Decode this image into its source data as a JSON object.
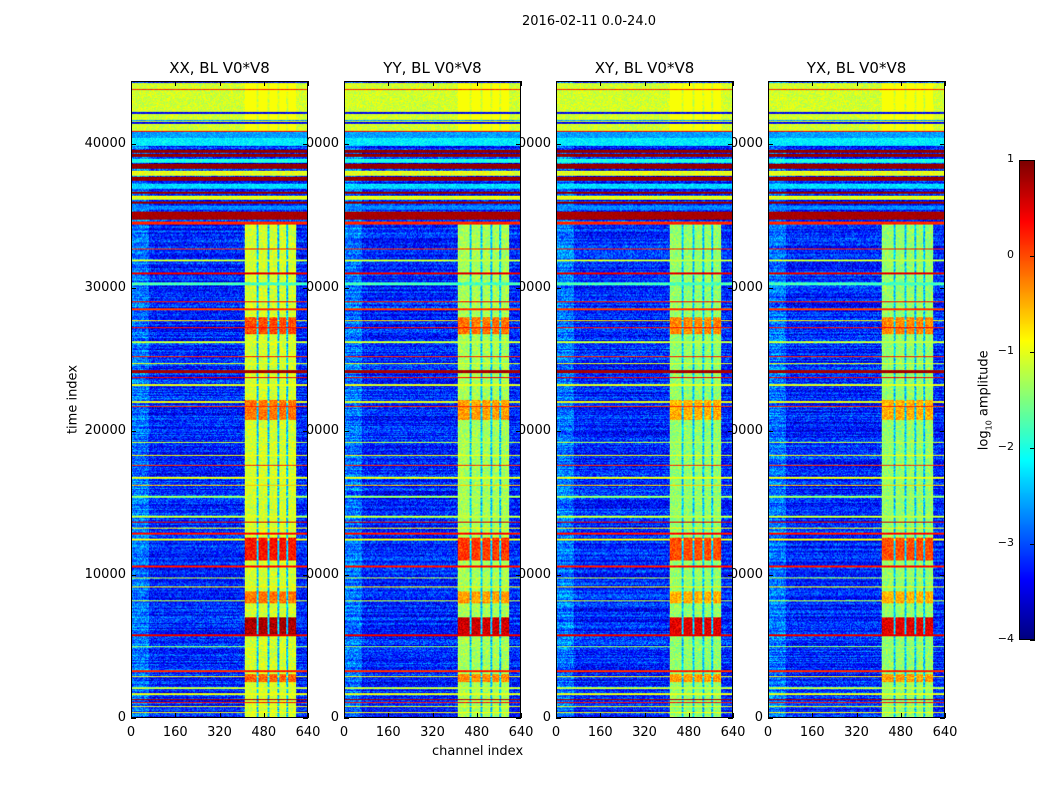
{
  "chart_data": {
    "type": "heatmap",
    "title": "2016-02-11 0.0-24.0",
    "xlabel": "channel index",
    "ylabel": "time index",
    "xlim": [
      0,
      640
    ],
    "ylim": [
      0,
      44400
    ],
    "xticks": [
      "0",
      "160",
      "320",
      "480",
      "640"
    ],
    "yticks": [
      "0",
      "10000",
      "20000",
      "30000",
      "40000"
    ],
    "panels": [
      {
        "title": "XX, BL V0*V8",
        "rfi_boost": 0.2
      },
      {
        "title": "YY, BL V0*V8",
        "rfi_boost": 0.0
      },
      {
        "title": "XY, BL V0*V8",
        "rfi_boost": -0.1
      },
      {
        "title": "YX, BL V0*V8",
        "rfi_boost": -0.1
      }
    ],
    "colorbar": {
      "label": "log₁₀ amplitude",
      "label_main": "log",
      "label_sub": "10",
      "label_rest": " amplitude",
      "colormap": "jet",
      "vmin": -4,
      "vmax": 1,
      "ticks": [
        "1",
        "0",
        "−1",
        "−2",
        "−3",
        "−4"
      ]
    },
    "background_level": -3.2,
    "rfi_channels": [
      410,
      600
    ],
    "rfi_gaps": [
      [
        452,
        462
      ],
      [
        494,
        500
      ],
      [
        528,
        536
      ],
      [
        562,
        570
      ]
    ],
    "rfi_level": -1.3,
    "rfi_blocks": [
      [
        5800,
        7000,
        0.6
      ],
      [
        11000,
        12600,
        0.1
      ],
      [
        8000,
        8800,
        -0.4
      ],
      [
        20800,
        22200,
        -0.4
      ],
      [
        26800,
        28000,
        -0.2
      ],
      [
        2500,
        3000,
        -0.3
      ]
    ],
    "time_bands": [
      [
        41000,
        44400,
        -1.1
      ],
      [
        43850,
        43950,
        0.2
      ],
      [
        42200,
        42350,
        -3.4
      ],
      [
        41500,
        41650,
        -3.4
      ],
      [
        41700,
        41800,
        -2.6
      ],
      [
        40950,
        41050,
        0.3
      ],
      [
        40500,
        40950,
        -2.6
      ],
      [
        40000,
        40500,
        -2.2
      ],
      [
        39500,
        39700,
        0.9
      ],
      [
        39200,
        39400,
        0.9
      ],
      [
        38800,
        39100,
        -2.0
      ],
      [
        38400,
        38700,
        0.9
      ],
      [
        37900,
        38200,
        -1.0
      ],
      [
        37500,
        37800,
        0.9
      ],
      [
        37000,
        37300,
        -2.3
      ],
      [
        36600,
        36800,
        0.9
      ],
      [
        36200,
        36500,
        -1.0
      ],
      [
        35900,
        36100,
        0.9
      ],
      [
        35500,
        35800,
        -2.7
      ],
      [
        34800,
        35400,
        0.8
      ],
      [
        34500,
        34650,
        0.2
      ],
      [
        32700,
        32800,
        0.2
      ],
      [
        31900,
        32000,
        -1.2
      ],
      [
        31000,
        31150,
        0.5
      ],
      [
        30200,
        30400,
        -1.8
      ],
      [
        29000,
        29100,
        0.3
      ],
      [
        28500,
        28600,
        0.1
      ],
      [
        27700,
        27800,
        -0.8
      ],
      [
        27200,
        27300,
        0.3
      ],
      [
        26200,
        26300,
        -1.2
      ],
      [
        25200,
        25300,
        0.2
      ],
      [
        24700,
        24800,
        -1.0
      ],
      [
        24100,
        24300,
        0.8
      ],
      [
        23700,
        23800,
        0.4
      ],
      [
        23200,
        23300,
        -1.0
      ],
      [
        22000,
        22100,
        -1.0
      ],
      [
        21700,
        21800,
        0.2
      ],
      [
        19200,
        19300,
        -1.2
      ],
      [
        18300,
        18400,
        -0.9
      ],
      [
        17600,
        17700,
        0.1
      ],
      [
        16700,
        16800,
        -1.0
      ],
      [
        16200,
        16300,
        -0.6
      ],
      [
        15400,
        15500,
        -1.4
      ],
      [
        14000,
        14100,
        -1.2
      ],
      [
        13600,
        13700,
        0.5
      ],
      [
        13200,
        13300,
        -0.8
      ],
      [
        12800,
        12900,
        0.3
      ],
      [
        12400,
        12500,
        -1.0
      ],
      [
        10500,
        10600,
        0.3
      ],
      [
        9700,
        9800,
        -1.2
      ],
      [
        9100,
        9200,
        -0.8
      ],
      [
        8100,
        8200,
        -1.2
      ],
      [
        5700,
        5800,
        0.5
      ],
      [
        4900,
        5000,
        -1.4
      ],
      [
        3200,
        3300,
        0.2
      ],
      [
        2800,
        2900,
        -0.9
      ],
      [
        2000,
        2100,
        -1.2
      ],
      [
        1600,
        1700,
        -1.0
      ],
      [
        1200,
        1300,
        0.8
      ],
      [
        1000,
        1100,
        0.3
      ],
      [
        700,
        800,
        -1.0
      ],
      [
        300,
        400,
        -0.9
      ]
    ]
  }
}
